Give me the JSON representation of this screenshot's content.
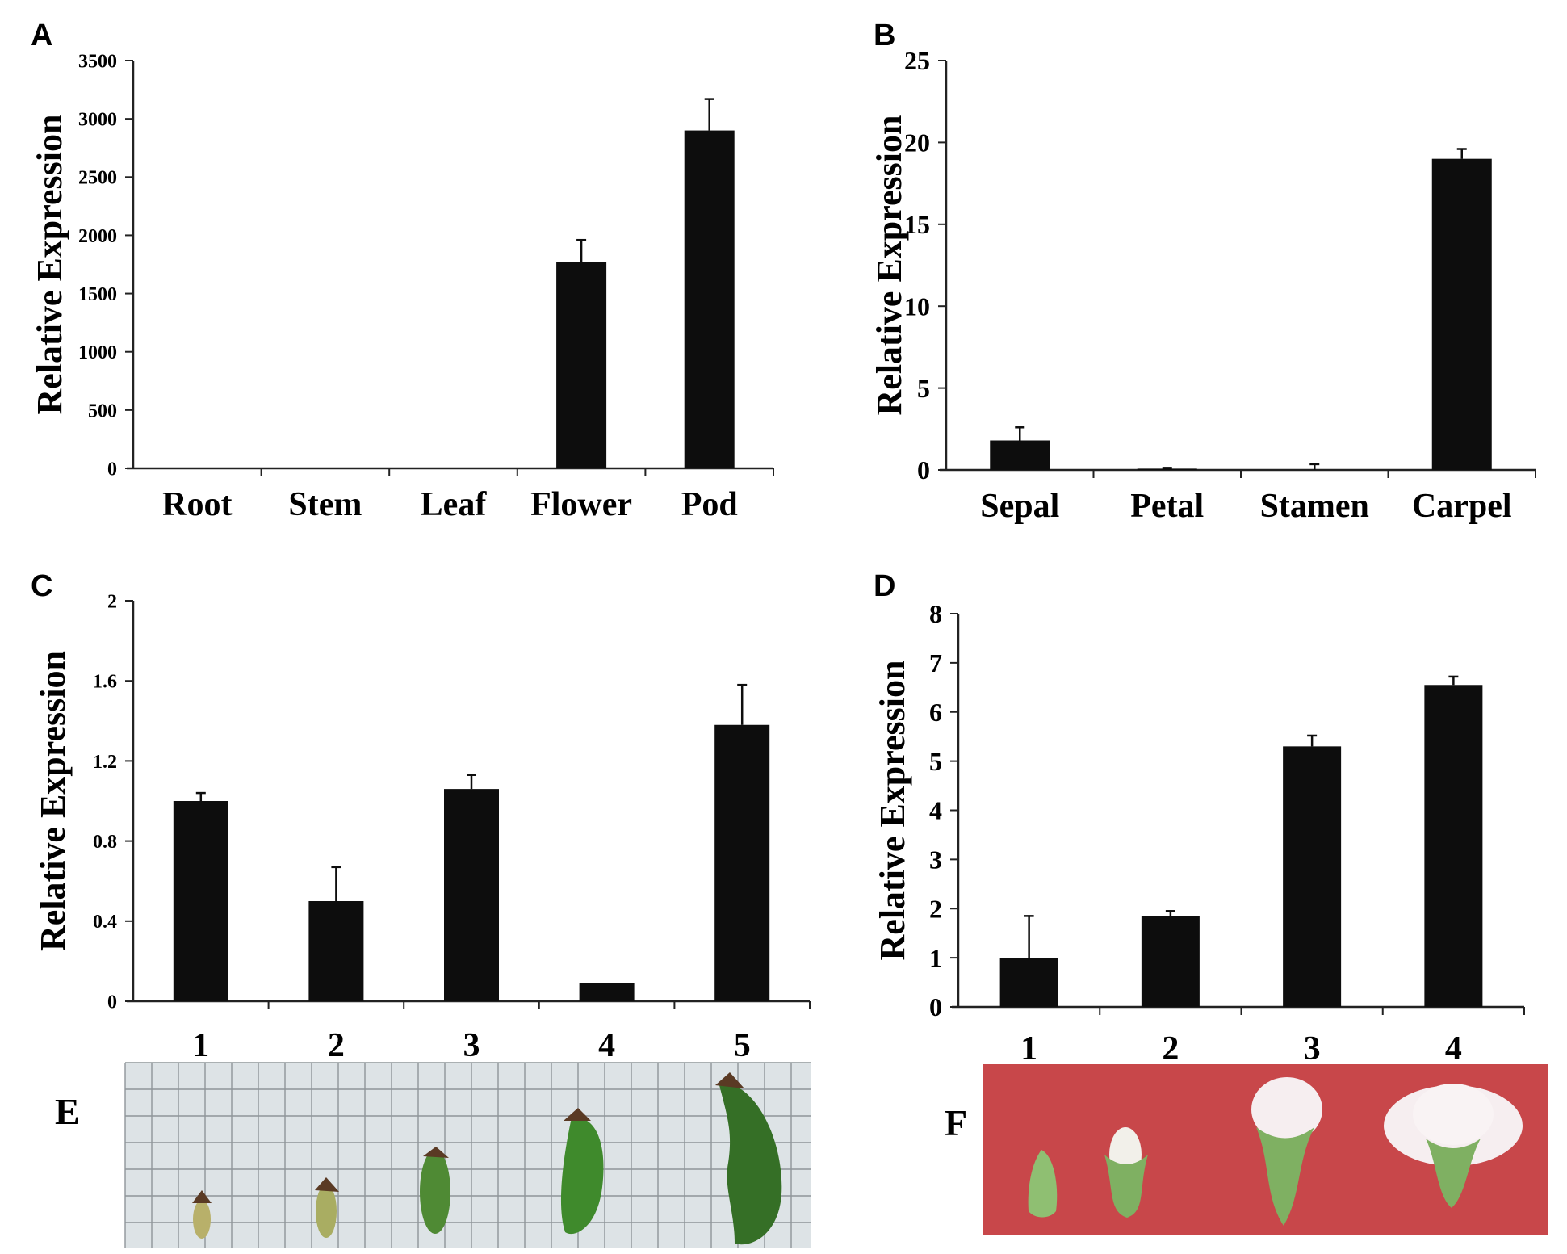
{
  "chart_data": [
    {
      "panel": "A",
      "type": "bar",
      "ylabel": "Relative Expression",
      "ylim": [
        0,
        3500
      ],
      "yticks": [
        "0",
        "500",
        "1000",
        "1500",
        "2000",
        "2500",
        "3000",
        "3500"
      ],
      "categories": [
        "Root",
        "Stem",
        "Leaf",
        "Flower",
        "Pod"
      ],
      "values": [
        0,
        0,
        0,
        1770,
        2900
      ],
      "errors": [
        0,
        0,
        0,
        190,
        270
      ]
    },
    {
      "panel": "B",
      "type": "bar",
      "ylabel": "Relative Expression",
      "ylim": [
        0,
        25
      ],
      "yticks": [
        "0",
        "5",
        "10",
        "15",
        "20",
        "25"
      ],
      "categories": [
        "Sepal",
        "Petal",
        "Stamen",
        "Carpel"
      ],
      "values": [
        1.8,
        0.08,
        0,
        19
      ],
      "errors": [
        0.8,
        0.05,
        0.35,
        0.6
      ]
    },
    {
      "panel": "C",
      "type": "bar",
      "ylabel": "Relative Expression",
      "ylim": [
        0,
        2
      ],
      "yticks": [
        "0",
        "0.4",
        "0.8",
        "1.2",
        "1.6",
        "2"
      ],
      "categories": [
        "1",
        "2",
        "3",
        "4",
        "5"
      ],
      "values": [
        1.0,
        0.5,
        1.06,
        0.09,
        1.38
      ],
      "errors": [
        0.04,
        0.17,
        0.07,
        0,
        0.2
      ]
    },
    {
      "panel": "D",
      "type": "bar",
      "ylabel": "Relative Expression",
      "ylim": [
        0,
        8
      ],
      "yticks": [
        "0",
        "1",
        "2",
        "3",
        "4",
        "5",
        "6",
        "7",
        "8"
      ],
      "categories": [
        "1",
        "2",
        "3",
        "4"
      ],
      "values": [
        1.0,
        1.85,
        5.3,
        6.55
      ],
      "errors": [
        0.85,
        0.1,
        0.22,
        0.17
      ]
    }
  ],
  "photos": [
    {
      "letter": "E",
      "description_icon": "pod-series-photo"
    },
    {
      "letter": "F",
      "description_icon": "flower-series-photo"
    }
  ],
  "colors": {
    "bar": "#0d0d0d",
    "axis": "#222222",
    "grid_paper": "#dde3e6",
    "grid_line": "#8e9599",
    "red_backdrop": "#c8474a",
    "pod_green": "#3f8a2c",
    "bud_green": "#8fbf72",
    "petal_white": "#f6eef0"
  }
}
